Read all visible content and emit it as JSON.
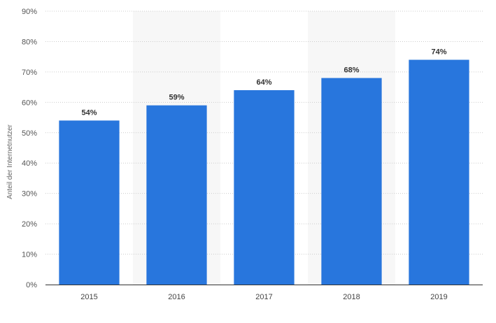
{
  "chart_data": {
    "type": "bar",
    "title": "",
    "xlabel": "",
    "ylabel": "Anteil der Internetnutzer",
    "categories": [
      "2015",
      "2016",
      "2017",
      "2018",
      "2019"
    ],
    "values": [
      54,
      59,
      64,
      68,
      74
    ],
    "value_labels": [
      "54%",
      "59%",
      "64%",
      "68%",
      "74%"
    ],
    "ylim": [
      0,
      90
    ],
    "y_ticks": [
      0,
      10,
      20,
      30,
      40,
      50,
      60,
      70,
      80,
      90
    ],
    "y_tick_labels": [
      "0%",
      "10%",
      "20%",
      "30%",
      "40%",
      "50%",
      "60%",
      "70%",
      "80%",
      "90%"
    ],
    "grid": true,
    "alternating_column_bands": true,
    "legend": "none",
    "colors": {
      "bar": "#2876dd",
      "band": "#f7f7f7",
      "grid": "#cccccc",
      "axis": "#333333"
    }
  }
}
